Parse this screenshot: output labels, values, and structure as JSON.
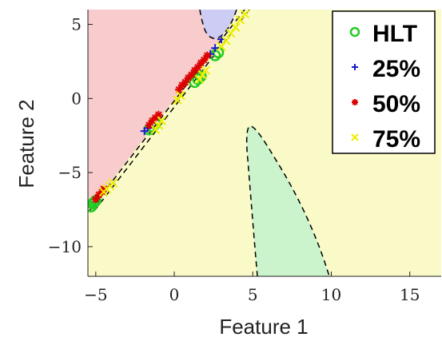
{
  "chart_data": {
    "type": "scatter",
    "xlabel": "Feature 1",
    "ylabel": "Feature 2",
    "xlim": [
      -5.5,
      17
    ],
    "ylim": [
      -12,
      6
    ],
    "xticks": [
      -5,
      0,
      5,
      10,
      15
    ],
    "xtick_labels": [
      "−5",
      "0",
      "5",
      "10",
      "15"
    ],
    "yticks": [
      5,
      0,
      -5,
      -10
    ],
    "ytick_labels": [
      "5",
      "0",
      "−5",
      "−10"
    ],
    "legend_position": "top-right",
    "series": [
      {
        "name": "HLT",
        "marker": "circle",
        "color": "#22cc22",
        "points": [
          [
            -5.3,
            -7.3
          ],
          [
            -5.2,
            -7.1
          ],
          [
            -5.1,
            -7.0
          ],
          [
            -5.0,
            -6.9
          ],
          [
            -1.6,
            -2.1
          ],
          [
            -1.4,
            -1.9
          ],
          [
            -1.2,
            -1.7
          ],
          [
            1.3,
            1.1
          ],
          [
            1.5,
            1.3
          ],
          [
            1.7,
            1.5
          ],
          [
            2.6,
            2.9
          ],
          [
            2.8,
            3.1
          ]
        ]
      },
      {
        "name": "25%",
        "marker": "plus",
        "color": "#1a1acc",
        "points": [
          [
            -1.9,
            -2.2
          ],
          [
            -1.7,
            -2.0
          ],
          [
            2.3,
            3.0
          ],
          [
            2.6,
            3.4
          ],
          [
            3.0,
            4.0
          ],
          [
            -5.0,
            -6.8
          ]
        ]
      },
      {
        "name": "50%",
        "marker": "asterisk",
        "color": "#dd0000",
        "points": [
          [
            -5.0,
            -6.8
          ],
          [
            -4.8,
            -6.5
          ],
          [
            -4.6,
            -6.3
          ],
          [
            -4.5,
            -6.1
          ],
          [
            -1.6,
            -1.8
          ],
          [
            -1.4,
            -1.5
          ],
          [
            -1.2,
            -1.3
          ],
          [
            -1.0,
            -1.1
          ],
          [
            0.3,
            0.6
          ],
          [
            0.5,
            0.9
          ],
          [
            0.7,
            1.1
          ],
          [
            0.9,
            1.4
          ],
          [
            1.1,
            1.6
          ],
          [
            1.3,
            1.9
          ],
          [
            1.5,
            2.1
          ],
          [
            1.7,
            2.4
          ],
          [
            1.9,
            2.6
          ],
          [
            2.1,
            2.9
          ]
        ]
      },
      {
        "name": "75%",
        "marker": "cross",
        "color": "#eeee00",
        "points": [
          [
            -4.5,
            -6.3
          ],
          [
            -4.3,
            -6.1
          ],
          [
            -4.1,
            -5.9
          ],
          [
            -3.9,
            -5.7
          ],
          [
            -1.2,
            -2.1
          ],
          [
            -1.0,
            -1.8
          ],
          [
            -0.8,
            -1.5
          ],
          [
            0.2,
            -0.1
          ],
          [
            0.4,
            0.2
          ],
          [
            1.6,
            1.3
          ],
          [
            1.8,
            1.6
          ],
          [
            2.0,
            1.9
          ],
          [
            3.0,
            3.5
          ],
          [
            3.3,
            3.9
          ],
          [
            3.6,
            4.4
          ],
          [
            3.9,
            4.8
          ],
          [
            4.2,
            5.3
          ],
          [
            4.5,
            5.7
          ]
        ]
      }
    ]
  },
  "legend": {
    "items": [
      {
        "label": "HLT",
        "color": "#22cc22"
      },
      {
        "label": "25%",
        "color": "#1a1acc"
      },
      {
        "label": "50%",
        "color": "#dd0000"
      },
      {
        "label": "75%",
        "color": "#eeee00"
      }
    ]
  },
  "colors": {
    "background_region": "#fafac8",
    "red_region": "#f8cccc",
    "blue_region": "#ccccf4",
    "green_region": "#ccf4cc",
    "boundary": "#000000"
  }
}
